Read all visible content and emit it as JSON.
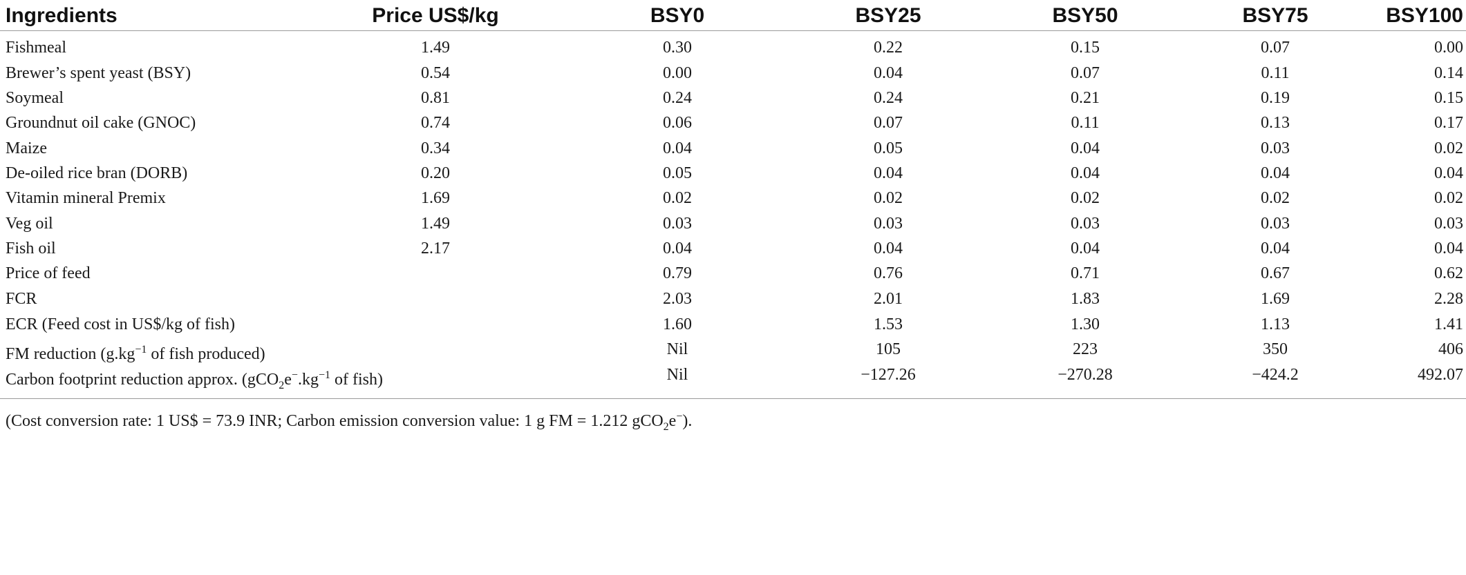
{
  "table": {
    "headers": [
      "Ingredients",
      "Price US$/kg",
      "BSY0",
      "BSY25",
      "BSY50",
      "BSY75",
      "BSY100"
    ],
    "rows": [
      [
        "Fishmeal",
        "1.49",
        "0.30",
        "0.22",
        "0.15",
        "0.07",
        "0.00"
      ],
      [
        "Brewer’s spent yeast (BSY)",
        "0.54",
        "0.00",
        "0.04",
        "0.07",
        "0.11",
        "0.14"
      ],
      [
        "Soymeal",
        "0.81",
        "0.24",
        "0.24",
        "0.21",
        "0.19",
        "0.15"
      ],
      [
        "Groundnut oil cake (GNOC)",
        "0.74",
        "0.06",
        "0.07",
        "0.11",
        "0.13",
        "0.17"
      ],
      [
        "Maize",
        "0.34",
        "0.04",
        "0.05",
        "0.04",
        "0.03",
        "0.02"
      ],
      [
        "De-oiled rice bran (DORB)",
        "0.20",
        "0.05",
        "0.04",
        "0.04",
        "0.04",
        "0.04"
      ],
      [
        "Vitamin mineral Premix",
        "1.69",
        "0.02",
        "0.02",
        "0.02",
        "0.02",
        "0.02"
      ],
      [
        "Veg oil",
        "1.49",
        "0.03",
        "0.03",
        "0.03",
        "0.03",
        "0.03"
      ],
      [
        "Fish oil",
        "2.17",
        "0.04",
        "0.04",
        "0.04",
        "0.04",
        "0.04"
      ],
      [
        "Price of feed",
        "",
        "0.79",
        "0.76",
        "0.71",
        "0.67",
        "0.62"
      ],
      [
        "FCR",
        "",
        "2.03",
        "2.01",
        "1.83",
        "1.69",
        "2.28"
      ],
      [
        "ECR (Feed cost in US$/kg of fish)",
        "",
        "1.60",
        "1.53",
        "1.30",
        "1.13",
        "1.41"
      ],
      [
        "",
        "",
        "Nil",
        "105",
        "223",
        "350",
        "406"
      ],
      [
        "",
        "",
        "Nil",
        "−127.26",
        "−270.28",
        "−424.2",
        "492.07"
      ]
    ],
    "fm_label": {
      "pre": "FM reduction (g.kg",
      "sup": "−1",
      "post": " of fish produced)"
    },
    "carbon_label": {
      "pre": "Carbon footprint reduction approx. (gCO",
      "sub": "2",
      "mid": "e",
      "sup1": "−",
      "mid2": ".kg",
      "sup2": "−1",
      "post": " of fish)"
    }
  },
  "footnote": {
    "pre": "(Cost conversion rate: 1 US$ = 73.9 INR; Carbon emission conversion value: 1 g FM = 1.212 gCO",
    "sub": "2",
    "mid": "e",
    "sup": "−",
    "post": ")."
  }
}
